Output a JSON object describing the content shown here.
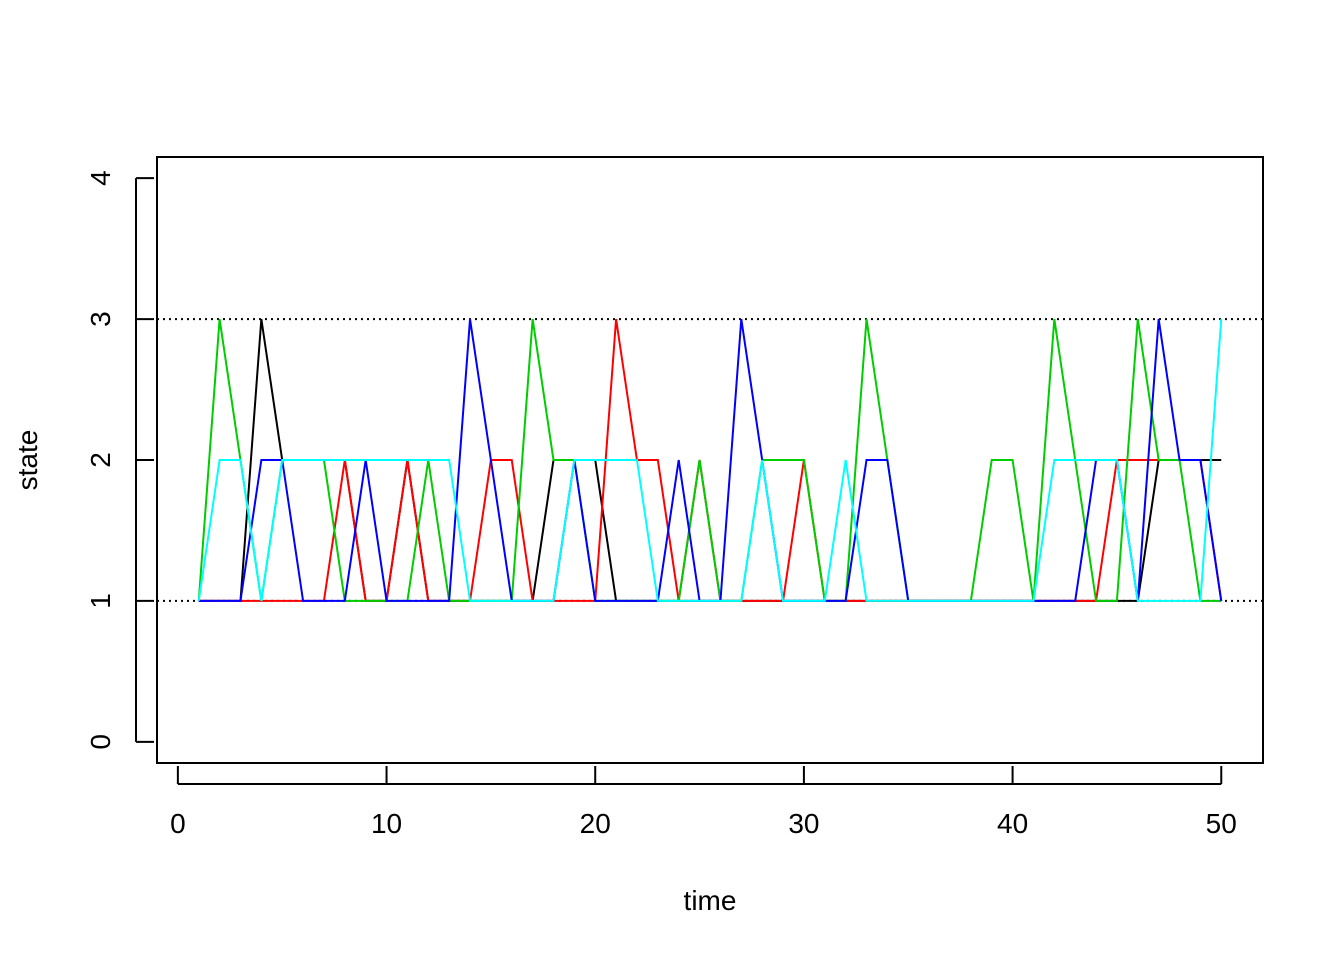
{
  "chart_data": {
    "type": "line",
    "title": "",
    "xlabel": "time",
    "ylabel": "state",
    "xlim": [
      -1,
      52
    ],
    "ylim": [
      -0.15,
      4.15
    ],
    "x_ticks": [
      0,
      10,
      20,
      30,
      40,
      50
    ],
    "y_ticks": [
      0,
      1,
      2,
      3,
      4
    ],
    "reference_lines": [
      1,
      3
    ],
    "legend": "none",
    "grid": false,
    "x": [
      1,
      2,
      3,
      4,
      5,
      6,
      7,
      8,
      9,
      10,
      11,
      12,
      13,
      14,
      15,
      16,
      17,
      18,
      19,
      20,
      21,
      22,
      23,
      24,
      25,
      26,
      27,
      28,
      29,
      30,
      31,
      32,
      33,
      34,
      35,
      36,
      37,
      38,
      39,
      40,
      41,
      42,
      43,
      44,
      45,
      46,
      47,
      48,
      49,
      50
    ],
    "series": [
      {
        "color": "#000000",
        "values": [
          1,
          1,
          1,
          3,
          2,
          2,
          2,
          2,
          1,
          1,
          2,
          1,
          1,
          1,
          1,
          1,
          1,
          2,
          2,
          2,
          1,
          1,
          1,
          1,
          1,
          1,
          1,
          1,
          1,
          1,
          1,
          1,
          1,
          1,
          1,
          1,
          1,
          1,
          1,
          1,
          1,
          1,
          1,
          1,
          1,
          1,
          2,
          2,
          2,
          2
        ]
      },
      {
        "color": "#ff0000",
        "values": [
          1,
          1,
          1,
          1,
          1,
          1,
          1,
          2,
          1,
          1,
          2,
          1,
          1,
          1,
          2,
          2,
          1,
          1,
          1,
          1,
          3,
          2,
          2,
          1,
          2,
          1,
          1,
          1,
          1,
          2,
          1,
          1,
          1,
          1,
          1,
          1,
          1,
          1,
          1,
          1,
          1,
          1,
          1,
          1,
          2,
          2,
          2,
          2,
          2,
          1
        ]
      },
      {
        "color": "#00cd00",
        "values": [
          1,
          3,
          2,
          1,
          2,
          2,
          2,
          1,
          1,
          1,
          1,
          2,
          1,
          1,
          1,
          1,
          3,
          2,
          2,
          1,
          1,
          1,
          1,
          1,
          2,
          1,
          1,
          2,
          2,
          2,
          1,
          1,
          3,
          2,
          1,
          1,
          1,
          1,
          2,
          2,
          1,
          3,
          2,
          1,
          1,
          3,
          2,
          2,
          1,
          1
        ]
      },
      {
        "color": "#0000ff",
        "values": [
          1,
          1,
          1,
          2,
          2,
          1,
          1,
          1,
          2,
          1,
          1,
          1,
          1,
          3,
          2,
          1,
          1,
          1,
          2,
          1,
          1,
          1,
          1,
          2,
          1,
          1,
          3,
          2,
          1,
          1,
          1,
          1,
          2,
          2,
          1,
          1,
          1,
          1,
          1,
          1,
          1,
          1,
          1,
          2,
          2,
          1,
          3,
          2,
          2,
          1
        ]
      },
      {
        "color": "#00ffff",
        "values": [
          1,
          2,
          2,
          1,
          2,
          2,
          2,
          2,
          2,
          2,
          2,
          2,
          2,
          1,
          1,
          1,
          1,
          1,
          2,
          2,
          2,
          2,
          1,
          1,
          1,
          1,
          1,
          2,
          1,
          1,
          1,
          2,
          1,
          1,
          1,
          1,
          1,
          1,
          1,
          1,
          1,
          2,
          2,
          2,
          2,
          1,
          1,
          1,
          1,
          3
        ]
      }
    ]
  }
}
